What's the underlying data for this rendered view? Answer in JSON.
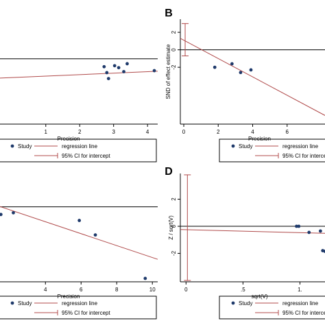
{
  "colors": {
    "background": "#ffffff",
    "axis": "#000000",
    "points": "#1f3a6b",
    "regression": "#b04a4a",
    "ci": "#b04a4a"
  },
  "chart_data": [
    {
      "type": "scatter",
      "panel": "A",
      "panel_label": "",
      "xlabel": "Precision",
      "ylabel": "",
      "xlim": [
        -0.35,
        4.3
      ],
      "ylim": [
        -3.3,
        2.0
      ],
      "xticks": [
        1,
        2,
        3,
        4
      ],
      "yticks": [],
      "points": [
        [
          2.72,
          -0.4
        ],
        [
          2.8,
          -0.7
        ],
        [
          2.85,
          -1.0
        ],
        [
          3.03,
          -0.35
        ],
        [
          3.15,
          -0.45
        ],
        [
          3.3,
          -0.65
        ],
        [
          3.4,
          -0.25
        ],
        [
          4.2,
          -0.6
        ]
      ],
      "regression": {
        "intercept": -0.95,
        "slope": 0.075
      },
      "ref_y": 0,
      "legend": {
        "study": "Study",
        "regression": "regression line",
        "ci": "95% CI for intercept"
      }
    },
    {
      "type": "scatter",
      "panel": "B",
      "panel_label": "B",
      "xlabel": "Precision",
      "ylabel": "SND of effect estimate",
      "xlim": [
        -0.2,
        8.2
      ],
      "ylim": [
        -8.5,
        3.5
      ],
      "xticks": [
        0,
        2,
        4,
        6
      ],
      "yticks": [
        2,
        0,
        -2
      ],
      "points": [
        [
          1.8,
          -2.0
        ],
        [
          2.8,
          -1.6
        ],
        [
          3.3,
          -2.6
        ],
        [
          3.9,
          -2.3
        ]
      ],
      "regression": {
        "intercept": 1.1,
        "slope": -1.05
      },
      "ci": {
        "x": 0,
        "low": -0.7,
        "high": 3.0
      },
      "ref_y": 0,
      "legend": {
        "study": "Study",
        "regression": "regression line",
        "ci": "95% CI for intercept"
      }
    },
    {
      "type": "scatter",
      "panel": "C",
      "panel_label": "",
      "xlabel": "Precision",
      "ylabel": "",
      "xlim": [
        1.45,
        10.3
      ],
      "ylim": [
        -8.8,
        1.5
      ],
      "xticks": [
        4,
        6,
        8,
        10
      ],
      "yticks": [],
      "points": [
        [
          1.5,
          -0.9
        ],
        [
          2.2,
          -0.7
        ],
        [
          5.9,
          -1.6
        ],
        [
          6.8,
          -3.3
        ],
        [
          9.6,
          -8.4
        ]
      ],
      "regression": {
        "intercept": 1.05,
        "slope": -0.7
      },
      "ref_y": 0,
      "legend": {
        "study": "Study",
        "regression": "regression line",
        "ci": "95% CI for intercept"
      }
    },
    {
      "type": "scatter",
      "panel": "D",
      "panel_label": "D",
      "xlabel": "sqrt(V)",
      "ylabel": "Z / sqrt(V)",
      "xlim": [
        -0.05,
        1.22
      ],
      "ylim": [
        -4.1,
        3.9
      ],
      "xticks": [
        0,
        0.5,
        1
      ],
      "ytick_labels": [
        "2",
        "0",
        "-2"
      ],
      "yticks": [
        2,
        0,
        -2
      ],
      "xtick_labels": [
        "0",
        ".5",
        "1."
      ],
      "points": [
        [
          0.97,
          0.0
        ],
        [
          0.99,
          0.0
        ],
        [
          1.08,
          -0.45
        ],
        [
          1.18,
          -0.35
        ],
        [
          1.2,
          -1.8
        ],
        [
          1.22,
          -1.85
        ]
      ],
      "regression": {
        "intercept": -0.25,
        "slope": -0.22
      },
      "ci": {
        "x": 0,
        "low": -4.0,
        "high": 3.8
      },
      "ref_y": 0,
      "legend": {
        "study": "Study",
        "regression": "regression line",
        "ci": "95% CI for intercept"
      }
    }
  ]
}
